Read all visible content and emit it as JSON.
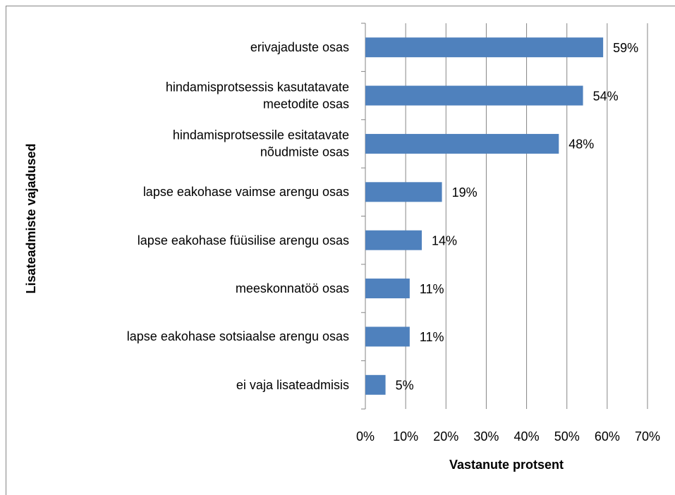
{
  "chart_data": {
    "type": "hbar",
    "categories": [
      "erivajaduste osas",
      "hindamisprotsessis kasutatavate\nmeetodite osas",
      "hindamisprotsessile esitatavate\nnõudmiste osas",
      "lapse eakohase vaimse arengu osas",
      "lapse eakohase füüsilise arengu osas",
      "meeskonnatöö osas",
      "lapse eakohase sotsiaalse arengu osas",
      "ei vaja lisateadmisis"
    ],
    "values": [
      59,
      54,
      48,
      19,
      14,
      11,
      11,
      5
    ],
    "value_labels": [
      "59%",
      "54%",
      "48%",
      "19%",
      "14%",
      "11%",
      "11%",
      "5%"
    ],
    "color": "#4f81bd",
    "xlim": [
      0,
      70
    ],
    "xticks": [
      {
        "value": 0,
        "label": "0%"
      },
      {
        "value": 10,
        "label": "10%"
      },
      {
        "value": 20,
        "label": "20%"
      },
      {
        "value": 30,
        "label": "30%"
      },
      {
        "value": 40,
        "label": "40%"
      },
      {
        "value": 50,
        "label": "50%"
      },
      {
        "value": 60,
        "label": "60%"
      },
      {
        "value": 70,
        "label": "70%"
      }
    ],
    "xlabel": "Vastanute protsent",
    "ylabel": "Lisateadmiste vajadused",
    "grid": true
  }
}
